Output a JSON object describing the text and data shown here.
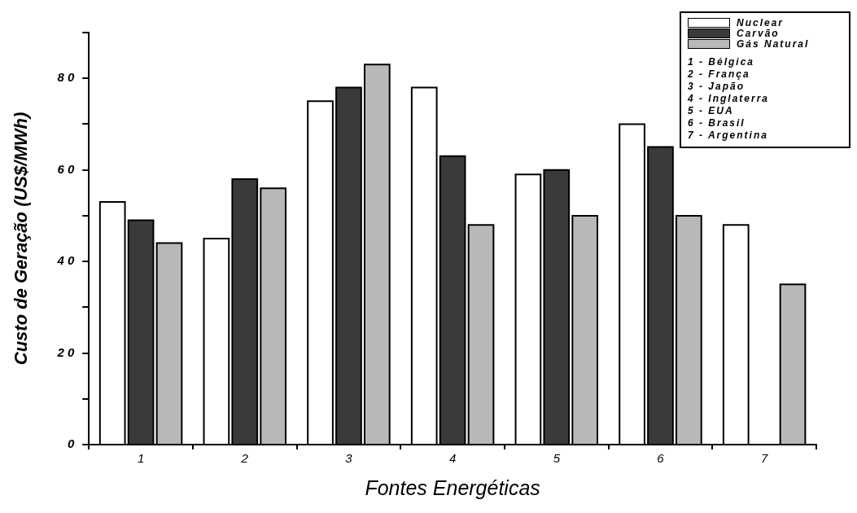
{
  "chart_data": {
    "type": "bar",
    "xlabel": "Fontes Energéticas",
    "ylabel": "Custo de Geração (US$/MWh)",
    "categories": [
      "1",
      "2",
      "3",
      "4",
      "5",
      "6",
      "7"
    ],
    "series": [
      {
        "name": "Nuclear",
        "color": "#ffffff",
        "values": [
          53,
          45,
          75,
          78,
          59,
          70,
          48
        ]
      },
      {
        "name": "Carvão",
        "color": "#3a3a3a",
        "values": [
          49,
          58,
          78,
          63,
          60,
          65,
          null
        ]
      },
      {
        "name": "Gás Natural",
        "color": "#b8b8b8",
        "values": [
          44,
          56,
          83,
          48,
          50,
          50,
          35
        ]
      }
    ],
    "ylim": [
      0,
      90
    ],
    "yticks": [
      0,
      {
        "value": 10,
        "label": null
      },
      20,
      {
        "value": 30,
        "label": null
      },
      40,
      {
        "value": 50,
        "label": null
      },
      60,
      {
        "value": 70,
        "label": null
      },
      80,
      {
        "value": 90,
        "label": null
      }
    ],
    "legend": "top right",
    "grid": false,
    "annotations": [
      "1 - Bélgica",
      "2 - França",
      "3 - Japão",
      "4 - Inglaterra",
      "5 - EUA",
      "6 - Brasil",
      "7 - Argentina"
    ]
  }
}
